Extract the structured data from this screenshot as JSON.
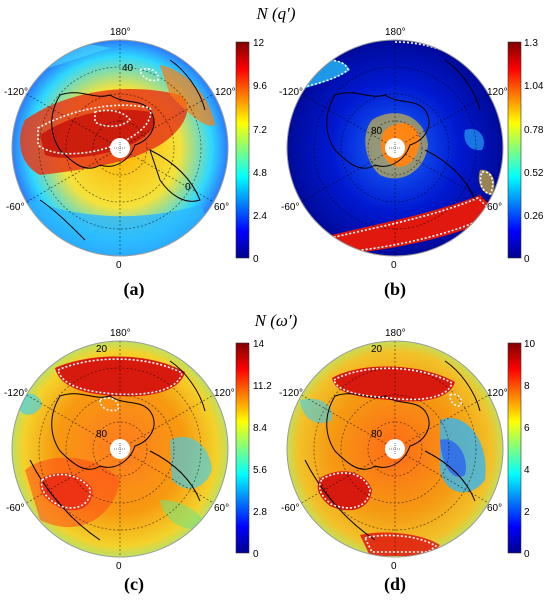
{
  "figure": {
    "row1_title": "N (q′)",
    "row2_title": "N (ω′)",
    "panels": [
      {
        "label": "(a)",
        "lon_labels": [
          "180°",
          "-120°",
          "120°",
          "-60°",
          "60°",
          "0"
        ],
        "lat_labels": [
          "40",
          "0"
        ],
        "colorbar_ticks": [
          "12",
          "9.6",
          "7.2",
          "4.8",
          "2.4",
          "0"
        ]
      },
      {
        "label": "(b)",
        "lon_labels": [
          "180°",
          "-120°",
          "120°",
          "-60°",
          "60°",
          "0"
        ],
        "lat_labels": [
          "80"
        ],
        "colorbar_ticks": [
          "1.3",
          "1.04",
          "0.78",
          "0.52",
          "0.26",
          "0"
        ]
      },
      {
        "label": "(c)",
        "lon_labels": [
          "180°",
          "-120°",
          "120°",
          "-60°",
          "60°",
          "0"
        ],
        "lat_labels": [
          "20",
          "80"
        ],
        "colorbar_ticks": [
          "14",
          "11.2",
          "8.4",
          "5.6",
          "2.8",
          "0"
        ]
      },
      {
        "label": "(d)",
        "lon_labels": [
          "180°",
          "-120°",
          "120°",
          "-60°",
          "60°",
          "0"
        ],
        "lat_labels": [
          "20",
          "80"
        ],
        "colorbar_ticks": [
          "10",
          "8",
          "6",
          "4",
          "2",
          "0"
        ]
      }
    ]
  }
}
